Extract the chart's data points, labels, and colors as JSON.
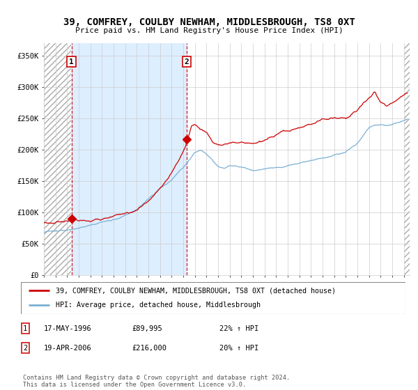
{
  "title": "39, COMFREY, COULBY NEWHAM, MIDDLESBROUGH, TS8 0XT",
  "subtitle": "Price paid vs. HM Land Registry's House Price Index (HPI)",
  "legend_line1": "39, COMFREY, COULBY NEWHAM, MIDDLESBROUGH, TS8 0XT (detached house)",
  "legend_line2": "HPI: Average price, detached house, Middlesbrough",
  "transaction1_date": "17-MAY-1996",
  "transaction1_price": "£89,995",
  "transaction1_hpi": "22% ↑ HPI",
  "transaction2_date": "19-APR-2006",
  "transaction2_price": "£216,000",
  "transaction2_hpi": "20% ↑ HPI",
  "footer": "Contains HM Land Registry data © Crown copyright and database right 2024.\nThis data is licensed under the Open Government Licence v3.0.",
  "red_color": "#cc0000",
  "blue_color": "#7bafd4",
  "shade_color": "#ddeeff",
  "ylim": [
    0,
    370000
  ],
  "yticks": [
    0,
    50000,
    100000,
    150000,
    200000,
    250000,
    300000,
    350000
  ],
  "ytick_labels": [
    "£0",
    "£50K",
    "£100K",
    "£150K",
    "£200K",
    "£250K",
    "£300K",
    "£350K"
  ],
  "transaction1_x": 1996.37,
  "transaction1_y": 89995,
  "transaction2_x": 2006.29,
  "transaction2_y": 216000,
  "xmin": 1994.0,
  "xmax": 2025.5
}
